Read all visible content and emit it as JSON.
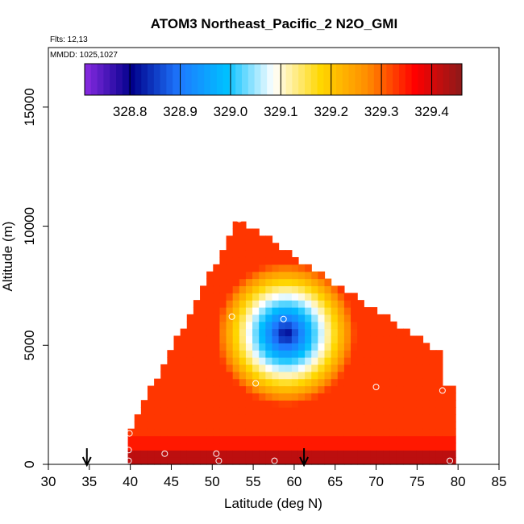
{
  "chart_data": {
    "type": "heatmap",
    "title": "ATOM3 Northeast_Pacific_2 N2O_GMI",
    "flights_label": "Flts: 12,13",
    "mmdd_label": "MMDD: 1025,1027",
    "xlabel": "Latitude (deg N)",
    "ylabel": "Altitude (m)",
    "xlim": [
      30,
      85
    ],
    "ylim": [
      0,
      17500
    ],
    "xticks": [
      30,
      35,
      40,
      45,
      50,
      55,
      60,
      65,
      70,
      75,
      80,
      85
    ],
    "yticks": [
      0,
      5000,
      10000,
      15000
    ],
    "grid": false,
    "colorbar": {
      "position": "top",
      "range": [
        328.71,
        329.46
      ],
      "ticks": [
        "328.8",
        "328.9",
        "329.0",
        "329.1",
        "329.2",
        "329.3",
        "329.4"
      ],
      "tick_values": [
        328.8,
        328.9,
        329.0,
        329.1,
        329.2,
        329.3,
        329.4
      ],
      "colors": [
        "#8a2be2",
        "#00008b",
        "#1e78ff",
        "#00bfff",
        "#ffffff",
        "#ffd700",
        "#ff8c00",
        "#ff0000",
        "#8b1a1a"
      ]
    },
    "field": {
      "low_value": 328.8,
      "low_center": {
        "lat": 59.0,
        "alt": 5500
      },
      "apex": {
        "lat": 53.2,
        "alt": 10300
      },
      "lat_range": [
        39.7,
        79.5
      ],
      "bottom_band_values": [
        {
          "alt_max": 500,
          "value": 329.42
        },
        {
          "alt_max": 1300,
          "value": 329.35
        }
      ]
    },
    "samples": [
      {
        "lat": 39.8,
        "alt": 150
      },
      {
        "lat": 39.8,
        "alt": 600
      },
      {
        "lat": 39.9,
        "alt": 1300
      },
      {
        "lat": 44.2,
        "alt": 450
      },
      {
        "lat": 50.5,
        "alt": 450
      },
      {
        "lat": 50.8,
        "alt": 150
      },
      {
        "lat": 57.6,
        "alt": 150
      },
      {
        "lat": 52.4,
        "alt": 6200
      },
      {
        "lat": 53.3,
        "alt": 10300
      },
      {
        "lat": 55.3,
        "alt": 3400
      },
      {
        "lat": 58.7,
        "alt": 6100
      },
      {
        "lat": 70.0,
        "alt": 3250
      },
      {
        "lat": 78.1,
        "alt": 3100
      },
      {
        "lat": 79.0,
        "alt": 150
      }
    ],
    "flight_arrows": [
      {
        "lat": 34.7
      },
      {
        "lat": 61.2
      }
    ]
  }
}
